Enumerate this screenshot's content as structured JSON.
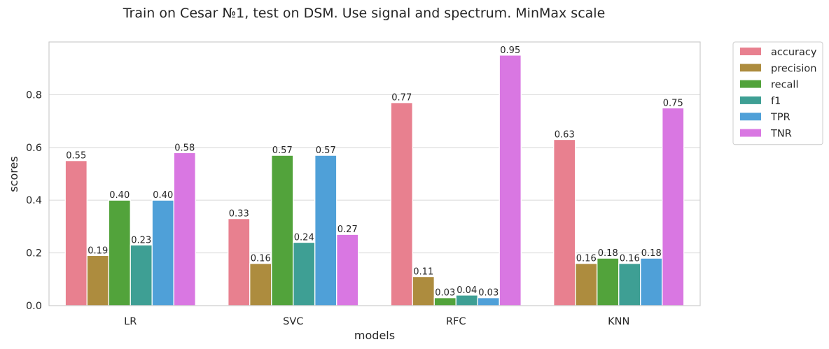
{
  "chart_data": {
    "type": "bar",
    "title": "Train on Cesar №1, test on DSM. Use signal and spectrum. MinMax scale",
    "xlabel": "models",
    "ylabel": "scores",
    "ylim": [
      0,
      1.0
    ],
    "yticks": [
      "0.0",
      "0.2",
      "0.4",
      "0.6",
      "0.8"
    ],
    "grid": "horizontal",
    "legend_placement": "outside right",
    "categories": [
      "LR",
      "SVC",
      "RFC",
      "KNN"
    ],
    "series": [
      {
        "name": "accuracy",
        "color": "#e8808f",
        "values": [
          0.55,
          0.33,
          0.77,
          0.63
        ],
        "labels": [
          "0.55",
          "0.33",
          "0.77",
          "0.63"
        ]
      },
      {
        "name": "precision",
        "color": "#ad8c3e",
        "values": [
          0.19,
          0.16,
          0.11,
          0.16
        ],
        "labels": [
          "0.19",
          "0.16",
          "0.11",
          "0.16"
        ]
      },
      {
        "name": "recall",
        "color": "#52a33b",
        "values": [
          0.4,
          0.57,
          0.03,
          0.18
        ],
        "labels": [
          "0.40",
          "0.57",
          "0.03",
          "0.18"
        ]
      },
      {
        "name": "f1",
        "color": "#3e9f94",
        "values": [
          0.23,
          0.24,
          0.04,
          0.16
        ],
        "labels": [
          "0.23",
          "0.24",
          "0.04",
          "0.16"
        ]
      },
      {
        "name": "TPR",
        "color": "#4fa0d8",
        "values": [
          0.4,
          0.57,
          0.03,
          0.18
        ],
        "labels": [
          "0.40",
          "0.57",
          "0.03",
          "0.18"
        ]
      },
      {
        "name": "TNR",
        "color": "#d977e2",
        "values": [
          0.58,
          0.27,
          0.95,
          0.75
        ],
        "labels": [
          "0.58",
          "0.27",
          "0.95",
          "0.75"
        ]
      }
    ]
  }
}
